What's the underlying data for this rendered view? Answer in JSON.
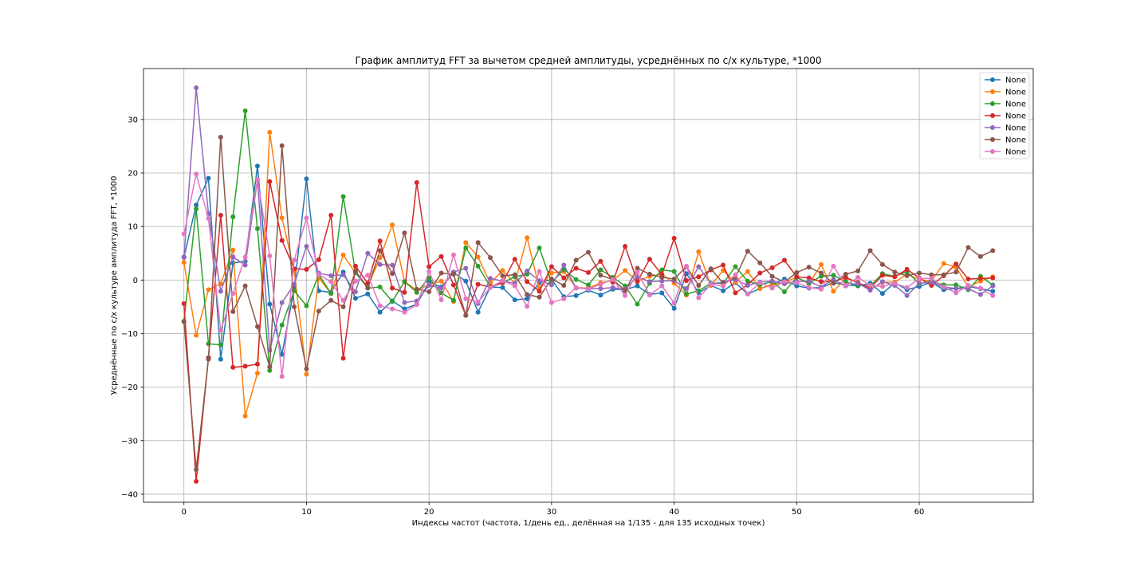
{
  "chart_data": {
    "type": "line",
    "title": "График амплитуд FFT за вычетом средней амплитуды, усреднённых по с/х культуре, *1000",
    "xlabel": "Индексы частот (частота, 1/день ед., делённая на 1/135 - для 135 исходных точек)",
    "ylabel": "Усреднённые по с/х культуре амплитуда FFT, *1000",
    "xlim": [
      -3.3,
      69.3
    ],
    "ylim": [
      -41.5,
      39.5
    ],
    "xticks": [
      0,
      10,
      20,
      30,
      40,
      50,
      60
    ],
    "yticks": [
      -40,
      -30,
      -20,
      -10,
      0,
      10,
      20,
      30
    ],
    "grid": true,
    "legend_position": "top-right",
    "series": [
      {
        "name": "None",
        "color": "#1f77b4",
        "values": [
          4.3,
          14.0,
          19.0,
          -14.8,
          3.2,
          3.5,
          21.3,
          -4.5,
          -13.9,
          -1.5,
          18.9,
          -2.0,
          -2.3,
          1.5,
          -3.4,
          -2.6,
          -6.0,
          -3.9,
          -5.4,
          -4.5,
          -0.4,
          -1.3,
          1.4,
          -0.2,
          -6.0,
          -1.3,
          -1.4,
          -3.7,
          -3.5,
          -0.5,
          0.1,
          -3.1,
          -2.9,
          -1.9,
          -2.8,
          -1.7,
          -1.8,
          -1.1,
          -2.7,
          -2.4,
          -5.3,
          1.2,
          -2.4,
          -1.0,
          -2.0,
          -0.5,
          -2.6,
          -1.6,
          -0.8,
          0.2,
          -1.1,
          -1.5,
          -1.4,
          -0.5,
          -0.9,
          -1.1,
          -0.6,
          -2.5,
          -0.5,
          -1.8,
          -1.2,
          -0.4,
          -1.8,
          -1.6,
          -1.2,
          -1.6,
          -2.1
        ]
      },
      {
        "name": "None",
        "color": "#ff7f0e",
        "values": [
          3.3,
          -10.3,
          -1.8,
          -0.7,
          5.6,
          -25.4,
          -17.4,
          27.6,
          11.6,
          1.7,
          -17.6,
          0.4,
          -2.5,
          4.7,
          1.3,
          -1.2,
          4.2,
          10.3,
          -0.3,
          -1.9,
          -0.9,
          -0.2,
          -4.0,
          7.0,
          4.3,
          -0.6,
          1.8,
          -0.6,
          7.9,
          -1.5,
          1.3,
          1.6,
          -1.4,
          -1.5,
          -0.5,
          -0.1,
          1.8,
          -0.2,
          0.7,
          1.1,
          -0.6,
          -2.8,
          5.3,
          -1.0,
          1.8,
          -0.4,
          1.6,
          -1.6,
          -0.9,
          -0.4,
          0.5,
          -0.7,
          2.9,
          -2.1,
          0.3,
          -0.4,
          -1.8,
          -0.4,
          -0.4,
          1.1,
          0.1,
          -0.2,
          3.1,
          2.4,
          -1.3,
          -0.2,
          0.6
        ]
      },
      {
        "name": "None",
        "color": "#2ca02c",
        "values": [
          -7.7,
          13.3,
          -11.9,
          -12.1,
          11.8,
          31.6,
          9.6,
          -16.9,
          -8.4,
          -2.0,
          -4.8,
          1.0,
          -2.5,
          15.6,
          1.4,
          -1.5,
          -1.3,
          -4.0,
          -0.3,
          -2.3,
          0.4,
          -2.4,
          -3.8,
          6.0,
          2.6,
          -1.2,
          -0.5,
          0.6,
          1.1,
          6.0,
          -0.5,
          2.0,
          0.1,
          -0.9,
          1.9,
          0.5,
          -1.1,
          -4.5,
          -0.6,
          1.9,
          1.6,
          -2.6,
          -2.0,
          -0.6,
          -0.6,
          2.5,
          -0.2,
          -0.9,
          -0.3,
          -2.2,
          0.5,
          -0.6,
          0.7,
          0.9,
          -0.3,
          -1.0,
          -1.1,
          1.2,
          0.7,
          1.6,
          -0.7,
          -0.2,
          -0.9,
          -0.9,
          -1.8,
          0.7,
          -0.9
        ]
      },
      {
        "name": "None",
        "color": "#d62728",
        "values": [
          -4.4,
          -37.6,
          -14.5,
          12.1,
          -16.3,
          -16.1,
          -15.7,
          18.4,
          7.4,
          2.1,
          2.0,
          3.8,
          12.1,
          -14.6,
          2.6,
          -0.6,
          7.3,
          -1.5,
          -2.3,
          18.2,
          2.5,
          4.4,
          -0.9,
          -6.6,
          -0.8,
          -1.3,
          -0.5,
          3.9,
          -0.3,
          -2.1,
          2.5,
          0.4,
          2.2,
          1.4,
          3.5,
          -0.4,
          6.3,
          -0.3,
          3.9,
          1.0,
          7.8,
          -0.1,
          0.6,
          1.9,
          2.8,
          -2.4,
          -0.9,
          1.3,
          2.3,
          3.7,
          0.6,
          0.4,
          -0.3,
          -0.3,
          0.5,
          -0.5,
          -1.5,
          0.9,
          0.6,
          2.0,
          0.4,
          -1.0,
          0.8,
          3.0,
          0.2,
          0.3,
          0.4
        ]
      },
      {
        "name": "None",
        "color": "#9467bd",
        "values": [
          4.2,
          35.9,
          12.4,
          -2.1,
          4.3,
          2.8,
          18.7,
          -13.1,
          -4.2,
          -0.8,
          6.3,
          1.3,
          0.8,
          1.0,
          -2.2,
          5.0,
          2.9,
          2.8,
          -4.2,
          -3.9,
          -1.0,
          -1.5,
          1.5,
          2.2,
          -4.4,
          0.3,
          -0.2,
          -0.6,
          1.7,
          -0.1,
          -0.9,
          2.8,
          -1.5,
          -1.6,
          -1.6,
          -1.4,
          -1.7,
          0.6,
          -0.3,
          -0.2,
          -0.1,
          -1.6,
          2.5,
          -0.7,
          -0.4,
          0.1,
          -1.0,
          -0.4,
          -0.2,
          -0.7,
          -0.3,
          -0.2,
          -1.3,
          0.1,
          -1.1,
          -0.6,
          -1.9,
          -0.3,
          -1.0,
          -2.9,
          -0.6,
          -0.4,
          -1.3,
          -1.6,
          -1.6,
          -2.7,
          -1.1
        ]
      },
      {
        "name": "None",
        "color": "#8c564b",
        "values": [
          -7.8,
          -35.4,
          -14.8,
          26.7,
          -5.9,
          -1.1,
          -8.7,
          -16.2,
          25.1,
          -5.0,
          -16.6,
          -5.8,
          -3.8,
          -5.0,
          1.7,
          -1.5,
          5.5,
          1.2,
          8.8,
          -1.7,
          -2.2,
          1.3,
          1.1,
          -6.6,
          7.0,
          4.2,
          0.8,
          1.0,
          -2.7,
          -3.2,
          0.2,
          -1.0,
          3.7,
          5.2,
          0.9,
          0.1,
          -2.0,
          2.2,
          1.1,
          0.5,
          0.2,
          2.5,
          -1.0,
          2.1,
          -0.6,
          0.5,
          5.4,
          3.2,
          0.7,
          -0.4,
          1.4,
          2.4,
          1.3,
          -0.6,
          1.1,
          1.7,
          5.5,
          2.9,
          1.5,
          0.8,
          1.3,
          1.0,
          1.0,
          1.5,
          6.1,
          4.4,
          5.5
        ]
      },
      {
        "name": "None",
        "color": "#e377c2",
        "values": [
          8.6,
          19.8,
          11.5,
          -9.4,
          -2.5,
          4.3,
          18.8,
          4.5,
          -18.0,
          3.7,
          11.6,
          1.0,
          -0.3,
          -3.8,
          -0.2,
          0.9,
          -4.8,
          -5.4,
          -6.0,
          -4.6,
          1.6,
          -3.7,
          4.7,
          -3.5,
          -4.1,
          -1.4,
          -0.1,
          -1.1,
          -4.9,
          1.6,
          -4.2,
          -3.5,
          -1.4,
          -1.7,
          -0.8,
          0.1,
          -2.9,
          1.5,
          -2.8,
          -1.1,
          -4.3,
          2.6,
          -3.3,
          -0.8,
          -1.1,
          1.0,
          -2.6,
          -0.5,
          -1.5,
          -0.3,
          -0.5,
          -1.4,
          -1.7,
          2.6,
          -1.0,
          0.5,
          -1.0,
          -1.2,
          -0.6,
          -1.4,
          0.3,
          0.3,
          -1.3,
          -2.4,
          -1.0,
          -1.5,
          -2.9
        ]
      }
    ]
  }
}
